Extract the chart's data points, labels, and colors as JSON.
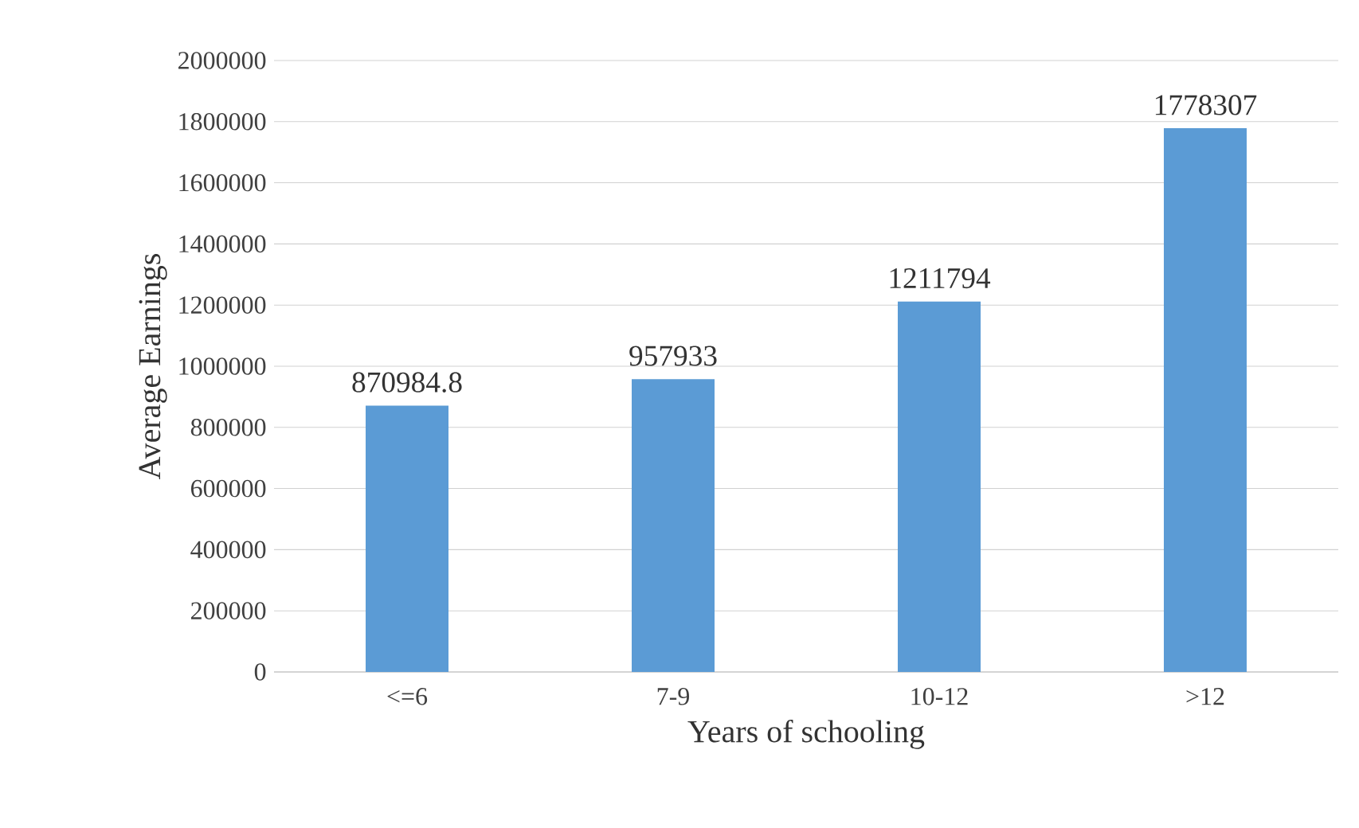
{
  "chart_data": {
    "type": "bar",
    "xlabel": "Years of schooling",
    "ylabel": "Average Earnings",
    "categories": [
      "<=6",
      "7-9",
      "10-12",
      ">12"
    ],
    "values": [
      870984.8,
      957933,
      1211794,
      1778307
    ],
    "value_labels": [
      "870984.8",
      "957933",
      "1211794",
      "1778307"
    ],
    "color": "#5b9bd5",
    "ylim": [
      0,
      2000000
    ],
    "yticks": [
      0,
      200000,
      400000,
      600000,
      800000,
      1000000,
      1200000,
      1400000,
      1600000,
      1800000,
      2000000
    ],
    "grid": "y"
  }
}
